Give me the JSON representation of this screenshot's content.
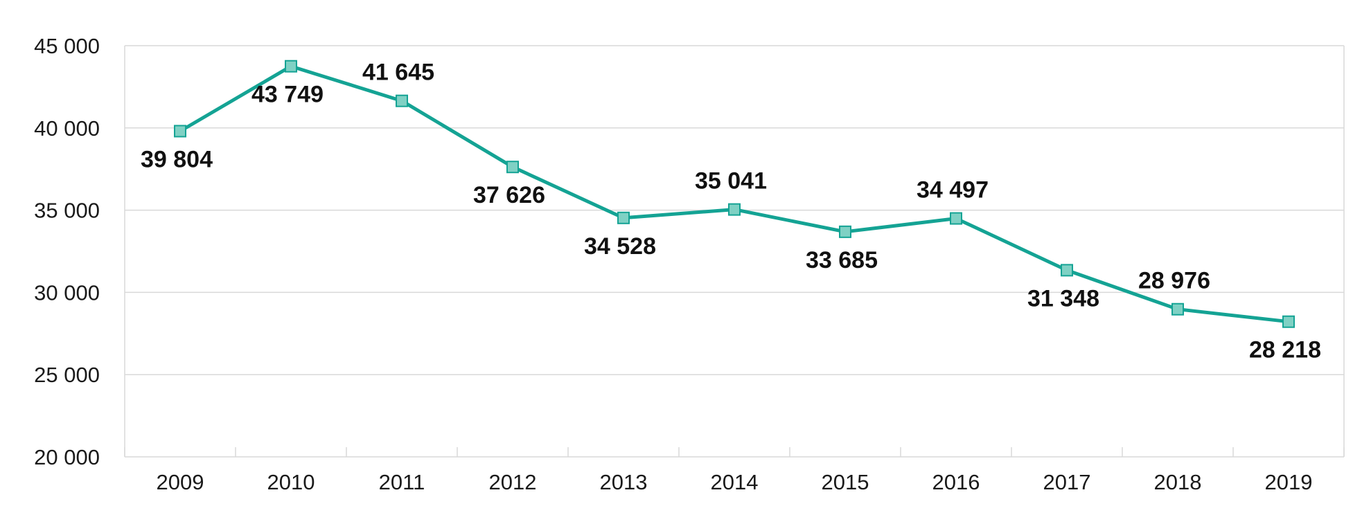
{
  "chart_data": {
    "type": "line",
    "title": "",
    "xlabel": "",
    "ylabel": "",
    "categories": [
      "2009",
      "2010",
      "2011",
      "2012",
      "2013",
      "2014",
      "2015",
      "2016",
      "2017",
      "2018",
      "2019"
    ],
    "series": [
      {
        "name": "",
        "values": [
          39804,
          43749,
          41645,
          37626,
          34528,
          35041,
          33685,
          34497,
          31348,
          28976,
          28218
        ],
        "labels": [
          "39 804",
          "43 749",
          "41 645",
          "37 626",
          "34 528",
          "35 041",
          "33 685",
          "34 497",
          "31 348",
          "28 976",
          "28 218"
        ],
        "label_positions": [
          "below",
          "below",
          "above",
          "below",
          "below",
          "above",
          "below",
          "above",
          "below",
          "above",
          "below"
        ],
        "color": "#14a394",
        "marker_fill": "#7fd1c4",
        "marker_stroke": "#14a394"
      }
    ],
    "ylim": [
      20000,
      45000
    ],
    "yticks": [
      20000,
      25000,
      30000,
      35000,
      40000,
      45000
    ],
    "ytick_labels": [
      "20 000",
      "25 000",
      "30 000",
      "35 000",
      "40 000",
      "45 000"
    ],
    "grid": true,
    "grid_color": "#d9d9d9",
    "legend": "none"
  }
}
